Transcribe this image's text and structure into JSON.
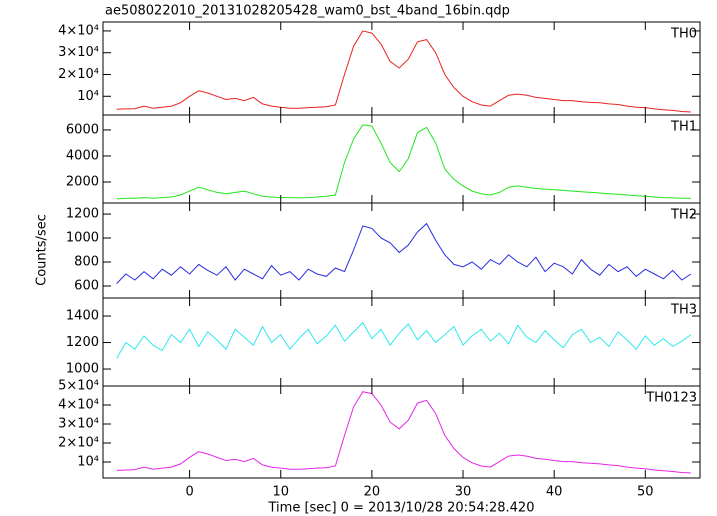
{
  "chart_data": [
    {
      "type": "line",
      "title": "ae508022010_20131028205428_wam0_bst_4band_16bin.qdp",
      "label": "TH0",
      "color": "#e8231f",
      "x": [
        -8,
        -7,
        -6,
        -5,
        -4,
        -3,
        -2,
        -1,
        0,
        1,
        2,
        3,
        4,
        5,
        6,
        7,
        8,
        9,
        10,
        11,
        12,
        13,
        14,
        15,
        16,
        17,
        18,
        19,
        20,
        21,
        22,
        23,
        24,
        25,
        26,
        27,
        28,
        29,
        30,
        31,
        32,
        33,
        34,
        35,
        36,
        37,
        38,
        39,
        40,
        41,
        42,
        43,
        44,
        45,
        46,
        47,
        48,
        49,
        50,
        51,
        52,
        53,
        54,
        55
      ],
      "values": [
        4000,
        4200,
        4300,
        5500,
        4500,
        5000,
        5500,
        7000,
        10000,
        12500,
        11500,
        10000,
        8500,
        9000,
        8000,
        9500,
        6500,
        5500,
        5000,
        4500,
        4500,
        4800,
        5000,
        5200,
        6000,
        20000,
        33000,
        40000,
        39000,
        34000,
        26000,
        23000,
        27000,
        35000,
        36000,
        30000,
        20000,
        14000,
        10000,
        7500,
        6000,
        5500,
        8000,
        10500,
        11000,
        10500,
        9500,
        9000,
        8500,
        8000,
        8000,
        7500,
        7200,
        7000,
        6500,
        6200,
        5500,
        5000,
        4800,
        4200,
        3800,
        3500,
        3000,
        2800
      ],
      "xlim": [
        -9.5,
        56
      ],
      "xticks": [
        0,
        10,
        20,
        30,
        40,
        50
      ],
      "ylim": [
        1400,
        44100
      ],
      "yticks": [
        {
          "value": 10000,
          "label": "10⁴"
        },
        {
          "value": 20000,
          "label": "2×10⁴"
        },
        {
          "value": 30000,
          "label": "3×10⁴"
        },
        {
          "value": 40000,
          "label": "4×10⁴"
        }
      ]
    },
    {
      "type": "line",
      "label": "TH1",
      "color": "#22e61e",
      "x": [
        -8,
        -7,
        -6,
        -5,
        -4,
        -3,
        -2,
        -1,
        0,
        1,
        2,
        3,
        4,
        5,
        6,
        7,
        8,
        9,
        10,
        11,
        12,
        13,
        14,
        15,
        16,
        17,
        18,
        19,
        20,
        21,
        22,
        23,
        24,
        25,
        26,
        27,
        28,
        29,
        30,
        31,
        32,
        33,
        34,
        35,
        36,
        37,
        38,
        39,
        40,
        41,
        42,
        43,
        44,
        45,
        46,
        47,
        48,
        49,
        50,
        51,
        52,
        53,
        54,
        55
      ],
      "values": [
        700,
        750,
        750,
        800,
        750,
        800,
        850,
        1000,
        1300,
        1600,
        1400,
        1200,
        1100,
        1200,
        1300,
        1100,
        900,
        850,
        800,
        800,
        780,
        800,
        850,
        900,
        1000,
        3500,
        5300,
        6400,
        6300,
        5000,
        3500,
        2800,
        3800,
        5800,
        6200,
        5000,
        3000,
        2200,
        1700,
        1300,
        1100,
        1000,
        1200,
        1600,
        1700,
        1600,
        1500,
        1450,
        1400,
        1350,
        1300,
        1250,
        1200,
        1150,
        1100,
        1050,
        1000,
        950,
        900,
        850,
        800,
        780,
        750,
        750
      ],
      "xlim": [
        -9.5,
        56
      ],
      "xticks": [
        0,
        10,
        20,
        30,
        40,
        50
      ],
      "ylim": [
        385,
        7150
      ],
      "yticks": [
        2000,
        4000,
        6000
      ]
    },
    {
      "type": "line",
      "label": "TH2",
      "color": "#2a2ee0",
      "ylabel": "Counts/sec",
      "x": [
        -8,
        -7,
        -6,
        -5,
        -4,
        -3,
        -2,
        -1,
        0,
        1,
        2,
        3,
        4,
        5,
        6,
        7,
        8,
        9,
        10,
        11,
        12,
        13,
        14,
        15,
        16,
        17,
        18,
        19,
        20,
        21,
        22,
        23,
        24,
        25,
        26,
        27,
        28,
        29,
        30,
        31,
        32,
        33,
        34,
        35,
        36,
        37,
        38,
        39,
        40,
        41,
        42,
        43,
        44,
        45,
        46,
        47,
        48,
        49,
        50,
        51,
        52,
        53,
        54,
        55
      ],
      "values": [
        620,
        700,
        650,
        720,
        660,
        740,
        690,
        760,
        700,
        780,
        730,
        690,
        760,
        650,
        740,
        700,
        660,
        770,
        690,
        720,
        650,
        740,
        700,
        680,
        750,
        720,
        900,
        1100,
        1080,
        1000,
        960,
        880,
        940,
        1050,
        1120,
        980,
        860,
        780,
        760,
        800,
        740,
        820,
        780,
        860,
        800,
        760,
        840,
        720,
        790,
        760,
        700,
        820,
        740,
        690,
        780,
        720,
        760,
        680,
        740,
        700,
        660,
        730,
        650,
        700
      ],
      "xlim": [
        -9.5,
        56
      ],
      "xticks": [
        0,
        10,
        20,
        30,
        40,
        50
      ],
      "ylim": [
        500,
        1292
      ],
      "yticks": [
        600,
        800,
        1000,
        1200
      ]
    },
    {
      "type": "line",
      "label": "TH3",
      "color": "#2ee8ee",
      "x": [
        -8,
        -7,
        -6,
        -5,
        -4,
        -3,
        -2,
        -1,
        0,
        1,
        2,
        3,
        4,
        5,
        6,
        7,
        8,
        9,
        10,
        11,
        12,
        13,
        14,
        15,
        16,
        17,
        18,
        19,
        20,
        21,
        22,
        23,
        24,
        25,
        26,
        27,
        28,
        29,
        30,
        31,
        32,
        33,
        34,
        35,
        36,
        37,
        38,
        39,
        40,
        41,
        42,
        43,
        44,
        45,
        46,
        47,
        48,
        49,
        50,
        51,
        52,
        53,
        54,
        55
      ],
      "values": [
        1080,
        1200,
        1150,
        1250,
        1180,
        1140,
        1260,
        1200,
        1300,
        1170,
        1280,
        1220,
        1150,
        1300,
        1240,
        1180,
        1320,
        1200,
        1260,
        1150,
        1230,
        1300,
        1190,
        1250,
        1330,
        1210,
        1280,
        1350,
        1230,
        1300,
        1180,
        1270,
        1340,
        1220,
        1290,
        1200,
        1260,
        1320,
        1180,
        1250,
        1300,
        1210,
        1270,
        1190,
        1330,
        1240,
        1200,
        1290,
        1220,
        1160,
        1260,
        1300,
        1200,
        1240,
        1170,
        1280,
        1220,
        1150,
        1250,
        1180,
        1230,
        1170,
        1210,
        1260
      ],
      "xlim": [
        -9.5,
        56
      ],
      "xticks": [
        0,
        10,
        20,
        30,
        40,
        50
      ],
      "ylim": [
        872,
        1536
      ],
      "yticks": [
        1000,
        1200,
        1400
      ]
    },
    {
      "type": "line",
      "label": "TH0123",
      "color": "#e425e4",
      "xlabel": "Time [sec] 0 = 2013/10/28 20:54:28.420",
      "x": [
        -8,
        -7,
        -6,
        -5,
        -4,
        -3,
        -2,
        -1,
        0,
        1,
        2,
        3,
        4,
        5,
        6,
        7,
        8,
        9,
        10,
        11,
        12,
        13,
        14,
        15,
        16,
        17,
        18,
        19,
        20,
        21,
        22,
        23,
        24,
        25,
        26,
        27,
        28,
        29,
        30,
        31,
        32,
        33,
        34,
        35,
        36,
        37,
        38,
        39,
        40,
        41,
        42,
        43,
        44,
        45,
        46,
        47,
        48,
        49,
        50,
        51,
        52,
        53,
        54,
        55
      ],
      "values": [
        5600,
        5800,
        6000,
        7300,
        6200,
        6800,
        7300,
        9000,
        12500,
        15400,
        14200,
        12500,
        10800,
        11400,
        10200,
        11900,
        8500,
        7300,
        6800,
        6200,
        6200,
        6500,
        6800,
        7000,
        7900,
        24000,
        39000,
        47000,
        46000,
        40000,
        31000,
        27500,
        32000,
        41000,
        42500,
        35500,
        24000,
        17100,
        12500,
        9600,
        7900,
        7300,
        10200,
        13100,
        13700,
        13100,
        11900,
        11400,
        10800,
        10200,
        10200,
        9600,
        9300,
        9000,
        8500,
        8100,
        7300,
        6800,
        6500,
        5800,
        5400,
        5000,
        4500,
        4200
      ],
      "xlim": [
        -9.5,
        56
      ],
      "xticks": [
        0,
        10,
        20,
        30,
        40,
        50
      ],
      "ylim": [
        1580,
        50000
      ],
      "yticks": [
        {
          "value": 10000,
          "label": "10⁴"
        },
        {
          "value": 20000,
          "label": "2×10⁴"
        },
        {
          "value": 30000,
          "label": "3×10⁴"
        },
        {
          "value": 40000,
          "label": "4×10⁴"
        },
        {
          "value": 50000,
          "label": "5×10⁴"
        }
      ]
    }
  ]
}
